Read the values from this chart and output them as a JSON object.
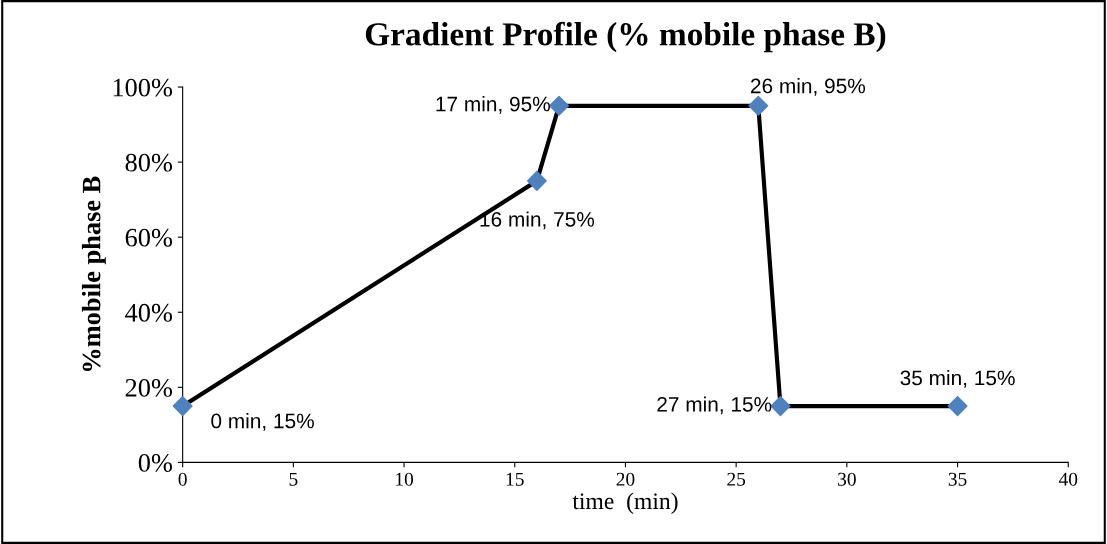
{
  "chart_data": {
    "type": "line",
    "title": "Gradient Profile (% mobile phase B)",
    "xlabel": "time  (min)",
    "ylabel": "%mobile phase B",
    "x": [
      0,
      16,
      17,
      26,
      27,
      35
    ],
    "series": [
      {
        "color": "#000000",
        "colors": [
          "#4f81bd",
          "#4f81bd",
          "#4f81bd",
          "#4f81bd",
          "#4f81bd",
          "#4f81bd"
        ],
        "values": [
          15,
          75,
          95,
          95,
          15,
          15
        ]
      }
    ],
    "xlim": [
      0,
      40
    ],
    "xticks": [
      0,
      5,
      10,
      15,
      20,
      25,
      30,
      35,
      40
    ],
    "ylim": [
      0,
      100
    ],
    "yticks": [
      {
        "value": 0,
        "label": "0%"
      },
      {
        "value": 20,
        "label": "20%"
      },
      {
        "value": 40,
        "label": "40%"
      },
      {
        "value": 60,
        "label": "60%"
      },
      {
        "value": 80,
        "label": "80%"
      },
      {
        "value": 100,
        "label": "100%"
      }
    ],
    "marker": "diamond",
    "line_style": "solid",
    "grid": false,
    "legend": false,
    "annotations": [
      {
        "text": "0 min, 15%",
        "x": 0,
        "y": 15
      },
      {
        "text": "16 min, 75%",
        "x": 16,
        "y": 75
      },
      {
        "text": "17 min, 95%",
        "x": 17,
        "y": 95
      },
      {
        "text": "26 min, 95%",
        "x": 26,
        "y": 95
      },
      {
        "text": "27 min, 15%",
        "x": 27,
        "y": 15
      },
      {
        "text": "35 min, 15%",
        "x": 35,
        "y": 15
      }
    ]
  }
}
